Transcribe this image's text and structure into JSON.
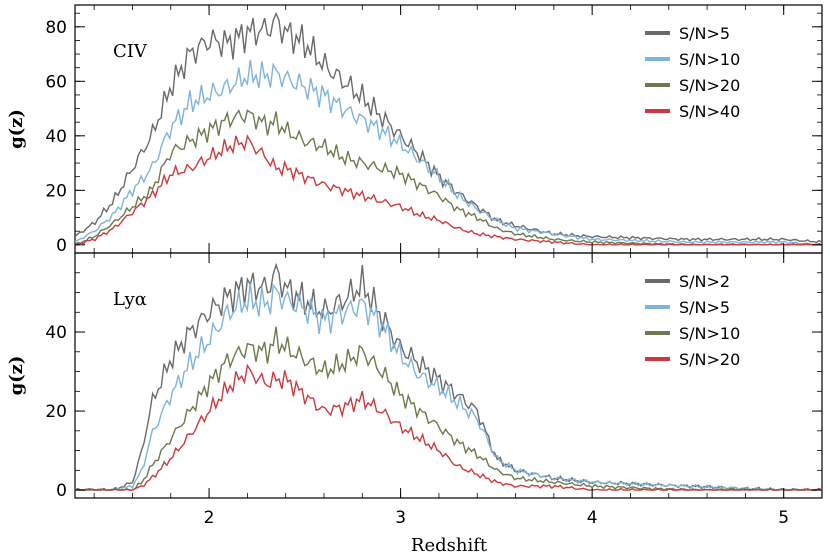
{
  "chart_data": [
    {
      "type": "line",
      "panel_label": "CIV",
      "ylabel": "g(z)",
      "xlabel": "",
      "xlim": [
        1.3,
        5.2
      ],
      "ylim": [
        -3,
        88
      ],
      "yticks": [
        0,
        20,
        40,
        60,
        80
      ],
      "xticks": [
        2,
        3,
        4,
        5
      ],
      "legend_position": "top-right",
      "series": [
        {
          "name": "S/N>5",
          "color": "#6a6a6a",
          "x": [
            1.3,
            1.4,
            1.5,
            1.6,
            1.7,
            1.8,
            1.9,
            2.0,
            2.1,
            2.2,
            2.3,
            2.35,
            2.4,
            2.5,
            2.6,
            2.7,
            2.8,
            2.9,
            3.0,
            3.1,
            3.2,
            3.3,
            3.4,
            3.5,
            3.6,
            3.8,
            4.0,
            4.5,
            5.0,
            5.2
          ],
          "y": [
            3,
            8,
            16,
            28,
            40,
            58,
            70,
            75,
            74,
            78,
            79,
            82,
            78,
            74,
            66,
            60,
            54,
            47,
            40,
            33,
            25,
            19,
            14,
            9,
            7,
            4,
            3,
            2,
            2,
            1
          ]
        },
        {
          "name": "S/N>10",
          "color": "#7fb3dc",
          "x": [
            1.3,
            1.4,
            1.5,
            1.6,
            1.7,
            1.8,
            1.9,
            2.0,
            2.1,
            2.2,
            2.3,
            2.35,
            2.4,
            2.5,
            2.6,
            2.7,
            2.8,
            2.9,
            3.0,
            3.1,
            3.2,
            3.3,
            3.4,
            3.5,
            3.6,
            3.8,
            4.0,
            4.5,
            5.0,
            5.2
          ],
          "y": [
            1,
            5,
            11,
            20,
            28,
            43,
            52,
            55,
            58,
            62,
            62,
            63,
            61,
            58,
            55,
            50,
            46,
            42,
            37,
            31,
            25,
            18,
            13,
            9,
            6,
            4,
            2,
            1,
            1,
            0
          ]
        },
        {
          "name": "S/N>20",
          "color": "#6b7a4d",
          "x": [
            1.3,
            1.4,
            1.5,
            1.6,
            1.7,
            1.8,
            1.9,
            2.0,
            2.1,
            2.2,
            2.3,
            2.35,
            2.4,
            2.5,
            2.6,
            2.7,
            2.8,
            2.9,
            3.0,
            3.1,
            3.2,
            3.3,
            3.4,
            3.5,
            3.6,
            3.8,
            4.0,
            4.5,
            5.0,
            5.2
          ],
          "y": [
            0,
            3,
            8,
            14,
            20,
            34,
            38,
            42,
            46,
            48,
            44,
            45,
            42,
            38,
            36,
            32,
            30,
            28,
            26,
            22,
            18,
            13,
            10,
            6,
            4,
            2,
            1,
            0,
            0,
            0
          ]
        },
        {
          "name": "S/N>40",
          "color": "#cc3a3f",
          "x": [
            1.3,
            1.4,
            1.5,
            1.6,
            1.7,
            1.8,
            1.9,
            2.0,
            2.1,
            2.2,
            2.3,
            2.35,
            2.4,
            2.5,
            2.6,
            2.7,
            2.8,
            2.9,
            3.0,
            3.1,
            3.2,
            3.3,
            3.4,
            3.5,
            3.6,
            3.8,
            4.0,
            4.5,
            5.0,
            5.2
          ],
          "y": [
            0,
            2,
            6,
            12,
            18,
            26,
            28,
            32,
            36,
            38,
            32,
            28,
            28,
            25,
            22,
            20,
            18,
            16,
            14,
            11,
            9,
            6,
            4,
            3,
            2,
            1,
            0,
            0,
            0,
            0
          ]
        }
      ]
    },
    {
      "type": "line",
      "panel_label": "Lyα",
      "ylabel": "g(z)",
      "xlabel": "Redshift",
      "xlim": [
        1.3,
        5.2
      ],
      "ylim": [
        -2,
        60
      ],
      "yticks": [
        0,
        20,
        40
      ],
      "xticks": [
        2,
        3,
        4,
        5
      ],
      "legend_position": "top-right",
      "series": [
        {
          "name": "S/N>2",
          "color": "#6a6a6a",
          "x": [
            1.3,
            1.5,
            1.6,
            1.65,
            1.7,
            1.8,
            1.9,
            2.0,
            2.1,
            2.2,
            2.3,
            2.35,
            2.4,
            2.5,
            2.6,
            2.7,
            2.8,
            2.9,
            3.0,
            3.1,
            3.2,
            3.3,
            3.4,
            3.5,
            3.6,
            3.8,
            4.0,
            4.5,
            5.0,
            5.2
          ],
          "y": [
            0,
            0,
            2,
            10,
            22,
            33,
            40,
            45,
            49,
            52,
            51,
            55,
            51,
            48,
            45,
            48,
            52,
            44,
            36,
            32,
            28,
            24,
            20,
            8,
            5,
            3,
            2,
            1,
            0,
            0
          ]
        },
        {
          "name": "S/N>5",
          "color": "#7fb3dc",
          "x": [
            1.3,
            1.5,
            1.6,
            1.65,
            1.7,
            1.8,
            1.9,
            2.0,
            2.1,
            2.2,
            2.3,
            2.35,
            2.4,
            2.5,
            2.6,
            2.7,
            2.8,
            2.9,
            3.0,
            3.1,
            3.2,
            3.3,
            3.4,
            3.5,
            3.6,
            3.8,
            4.0,
            4.5,
            5.0,
            5.2
          ],
          "y": [
            0,
            0,
            1,
            5,
            14,
            24,
            32,
            38,
            45,
            48,
            47,
            50,
            48,
            46,
            43,
            45,
            47,
            42,
            34,
            29,
            26,
            22,
            18,
            8,
            5,
            3,
            2,
            1,
            0,
            0
          ]
        },
        {
          "name": "S/N>10",
          "color": "#6b7a4d",
          "x": [
            1.3,
            1.5,
            1.6,
            1.65,
            1.7,
            1.8,
            1.9,
            2.0,
            2.1,
            2.2,
            2.3,
            2.35,
            2.4,
            2.5,
            2.6,
            2.7,
            2.8,
            2.9,
            3.0,
            3.1,
            3.2,
            3.3,
            3.4,
            3.5,
            3.6,
            3.8,
            4.0,
            4.5,
            5.0,
            5.2
          ],
          "y": [
            0,
            0,
            0,
            2,
            6,
            13,
            20,
            27,
            33,
            36,
            35,
            38,
            36,
            33,
            30,
            32,
            35,
            30,
            24,
            20,
            16,
            12,
            9,
            5,
            3,
            2,
            1,
            0,
            0,
            0
          ]
        },
        {
          "name": "S/N>20",
          "color": "#cc3a3f",
          "x": [
            1.3,
            1.5,
            1.6,
            1.65,
            1.7,
            1.8,
            1.9,
            2.0,
            2.1,
            2.2,
            2.3,
            2.35,
            2.4,
            2.5,
            2.6,
            2.7,
            2.8,
            2.9,
            3.0,
            3.1,
            3.2,
            3.3,
            3.4,
            3.5,
            3.6,
            3.8,
            4.0,
            4.5,
            5.0,
            5.2
          ],
          "y": [
            0,
            0,
            0,
            1,
            3,
            8,
            14,
            20,
            26,
            30,
            27,
            28,
            28,
            24,
            20,
            21,
            23,
            20,
            16,
            13,
            10,
            6,
            4,
            2,
            1,
            1,
            0,
            0,
            0,
            0
          ]
        }
      ]
    }
  ]
}
